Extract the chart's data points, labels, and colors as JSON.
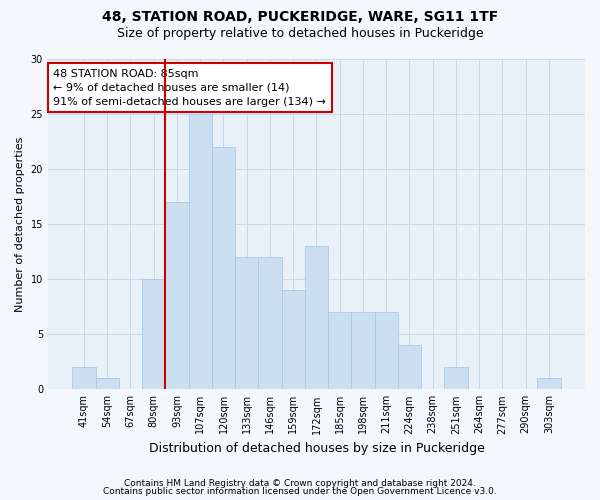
{
  "title1": "48, STATION ROAD, PUCKERIDGE, WARE, SG11 1TF",
  "title2": "Size of property relative to detached houses in Puckeridge",
  "xlabel": "Distribution of detached houses by size in Puckeridge",
  "ylabel": "Number of detached properties",
  "categories": [
    "41sqm",
    "54sqm",
    "67sqm",
    "80sqm",
    "93sqm",
    "107sqm",
    "120sqm",
    "133sqm",
    "146sqm",
    "159sqm",
    "172sqm",
    "185sqm",
    "198sqm",
    "211sqm",
    "224sqm",
    "238sqm",
    "251sqm",
    "264sqm",
    "277sqm",
    "290sqm",
    "303sqm"
  ],
  "values": [
    2,
    1,
    0,
    10,
    17,
    25,
    22,
    12,
    12,
    9,
    13,
    7,
    7,
    7,
    4,
    0,
    2,
    0,
    0,
    0,
    1
  ],
  "bar_color": "#ccdff0",
  "bar_edge_color": "#a8c8e8",
  "annotation_text": "48 STATION ROAD: 85sqm\n← 9% of detached houses are smaller (14)\n91% of semi-detached houses are larger (134) →",
  "annotation_box_color": "#ffffff",
  "annotation_box_edge": "#cc0000",
  "vline_x": 3.5,
  "vline_color": "#cc0000",
  "ylim": [
    0,
    30
  ],
  "yticks": [
    0,
    5,
    10,
    15,
    20,
    25,
    30
  ],
  "grid_color": "#c8d8e8",
  "footer1": "Contains HM Land Registry data © Crown copyright and database right 2024.",
  "footer2": "Contains public sector information licensed under the Open Government Licence v3.0.",
  "bg_color": "#f4f8fc",
  "plot_bg_color": "#e8f0f8",
  "title_fontsize": 10,
  "subtitle_fontsize": 9,
  "ylabel_fontsize": 8,
  "xlabel_fontsize": 9,
  "tick_fontsize": 7,
  "footer_fontsize": 6.5,
  "ann_fontsize": 8
}
